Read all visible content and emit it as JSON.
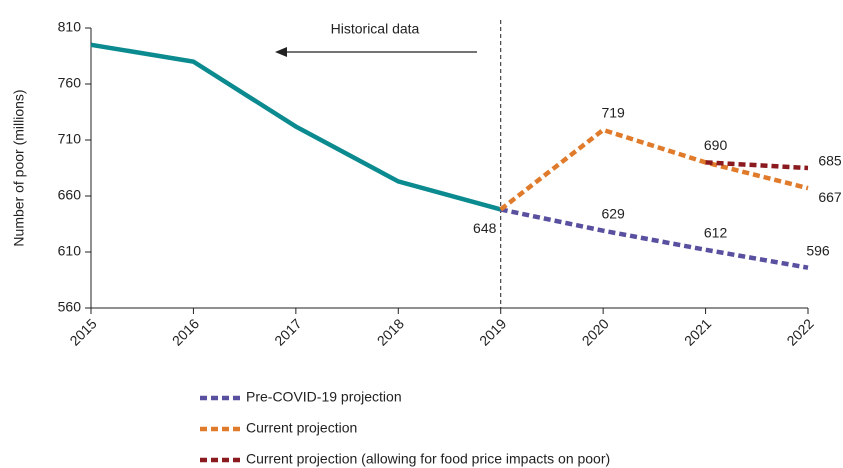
{
  "chart_data": {
    "type": "line",
    "y_label": "Number of poor (millions)",
    "annotation": "Historical data",
    "divider_x": 2019,
    "x": [
      2015,
      2016,
      2017,
      2018,
      2019,
      2020,
      2021,
      2022
    ],
    "xlim": [
      2015,
      2022
    ],
    "xticks": [
      2015,
      2016,
      2017,
      2018,
      2019,
      2020,
      2021,
      2022
    ],
    "ylim": [
      560,
      810
    ],
    "yticks": [
      560,
      610,
      660,
      710,
      760,
      810
    ],
    "series": [
      {
        "color": "#0b8a8f",
        "style": "solid",
        "values": [
          795,
          780,
          722,
          673,
          648,
          null,
          null,
          null
        ]
      },
      {
        "name": "Pre-COVID-19 projection",
        "color": "#5a50a0",
        "style": "dashed",
        "values": [
          null,
          null,
          null,
          null,
          648,
          629,
          612,
          596
        ]
      },
      {
        "name": "Current projection",
        "color": "#e07b2c",
        "style": "dashed",
        "values": [
          null,
          null,
          null,
          null,
          648,
          719,
          690,
          667
        ]
      },
      {
        "name": "Current projection (allowing for food price impacts on poor)",
        "color": "#8b1a1f",
        "style": "dashed",
        "values": [
          null,
          null,
          null,
          null,
          null,
          null,
          690,
          685
        ]
      }
    ]
  }
}
